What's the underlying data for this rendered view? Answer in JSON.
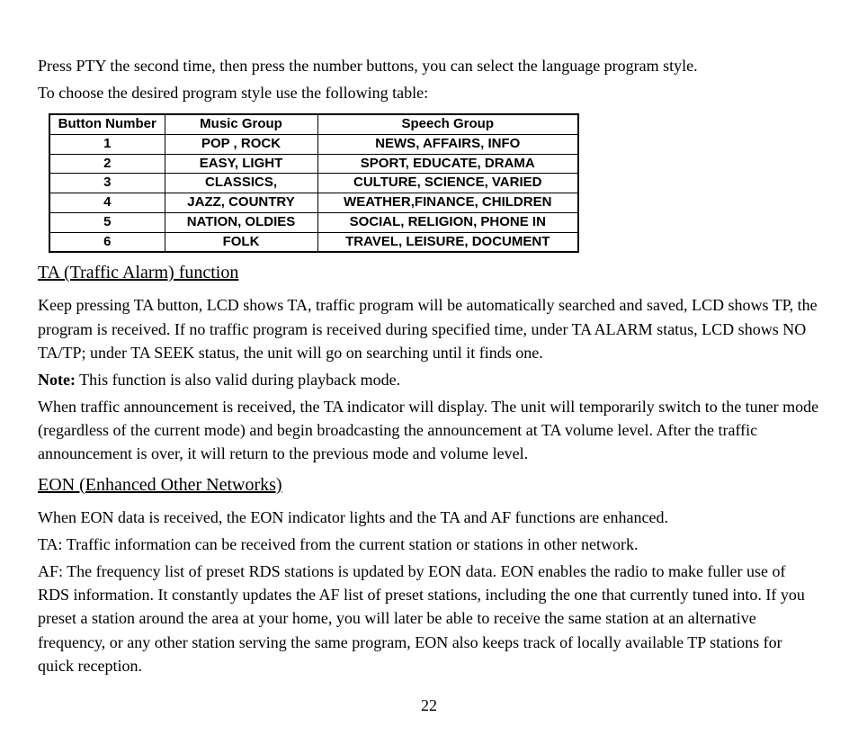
{
  "intro": {
    "line1": "Press PTY the second time, then press the number buttons, you can select the language program style.",
    "line2": "To choose the desired program style use the following table:"
  },
  "pty_table": {
    "columns": {
      "button": "Button Number",
      "music": "Music Group",
      "speech": "Speech Group"
    },
    "col_widths": {
      "button": 128,
      "music": 170,
      "speech": 290
    },
    "border_color": "#000000",
    "font_family": "Arial",
    "header_fontsize": 15,
    "cell_fontsize": 15,
    "rows": [
      {
        "n": "1",
        "music": "POP , ROCK",
        "speech": "NEWS, AFFAIRS, INFO"
      },
      {
        "n": "2",
        "music": "EASY, LIGHT",
        "speech": "SPORT, EDUCATE, DRAMA"
      },
      {
        "n": "3",
        "music": "CLASSICS,",
        "speech": "CULTURE, SCIENCE, VARIED"
      },
      {
        "n": "4",
        "music": "JAZZ, COUNTRY",
        "speech": "WEATHER,FINANCE, CHILDREN"
      },
      {
        "n": "5",
        "music": "NATION, OLDIES",
        "speech": "SOCIAL, RELIGION, PHONE IN"
      },
      {
        "n": "6",
        "music": "FOLK",
        "speech": "TRAVEL, LEISURE, DOCUMENT"
      }
    ]
  },
  "ta": {
    "heading": "TA (Traffic Alarm) function",
    "p1": "Keep pressing TA button, LCD shows TA, traffic program will be automatically searched and saved, LCD shows TP, the program is received. If no traffic program is received during specified time, under TA ALARM status, LCD shows NO TA/TP; under TA SEEK status, the unit will go on searching until it finds one.",
    "note_label": "Note:",
    "note_text": " This function is also valid during playback mode.",
    "p2": "When traffic announcement is received, the TA indicator will display. The unit will temporarily switch to the tuner mode (regardless of the current mode) and begin broadcasting the announcement at TA volume level. After the traffic announcement is over, it will return to the previous mode and volume level."
  },
  "eon": {
    "heading": "EON (Enhanced Other Networks)",
    "p1": "When EON data is received, the EON indicator lights and the TA and AF functions are enhanced.",
    "p2": "TA: Traffic information can be received from the current station or stations in other network.",
    "p3": "AF: The frequency list of preset RDS stations is updated by EON data. EON enables the radio to make fuller use of RDS information. It constantly updates the AF list of preset stations, including the one that currently tuned into. If you preset a station around the area at your home, you will later be able to receive the same station at an alternative frequency, or any other station serving the same program, EON also keeps track of locally available TP stations for quick reception."
  },
  "page_number": "22",
  "colors": {
    "text": "#000000",
    "background": "#ffffff"
  }
}
